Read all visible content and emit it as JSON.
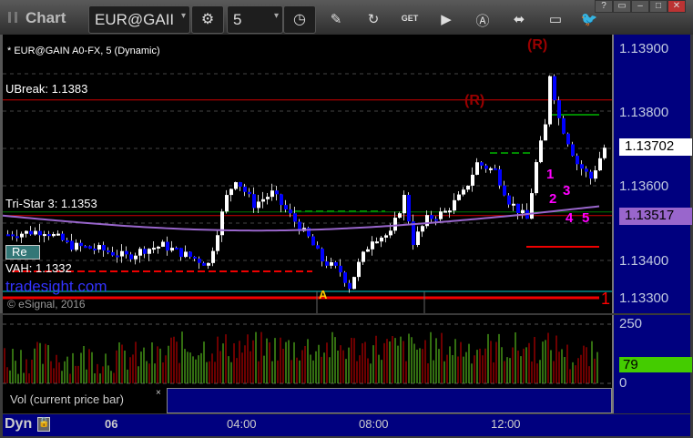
{
  "window": {
    "title": "Chart",
    "symbol": "EUR@GAII",
    "interval": "5"
  },
  "toolbar": {
    "icons": [
      "gear-icon",
      "clock-icon",
      "pencil-icon",
      "refresh-chart-icon",
      "get-icon",
      "play-icon",
      "a-icon",
      "link-icon",
      "comment-icon",
      "twitter-icon"
    ],
    "win": [
      "?",
      "▭",
      "–",
      "□",
      "✕"
    ]
  },
  "chart": {
    "heading": "* EUR@GAIN A0-FX, 5 (Dynamic)",
    "copyright": "© eSignal, 2016",
    "watermark": "tradesight.com",
    "ubreak": "UBreak: 1.1383",
    "tristar": "Tri-Star 3: 1.1353",
    "vah": "VAH: 1.1332",
    "r1": "(R)",
    "r2": "(R)",
    "a_marker": "A",
    "one_marker": "1",
    "magenta": [
      "1",
      "2",
      "3",
      "4",
      "5"
    ],
    "badge": "Re"
  },
  "chart_data": {
    "type": "candlestick",
    "y_ticks": [
      "1.13900",
      "1.13800",
      "1.13600",
      "1.13400",
      "1.13300"
    ],
    "ylim": [
      1.1328,
      1.1395
    ],
    "price_path": [
      [
        0,
        1.1347
      ],
      [
        8,
        1.1348
      ],
      [
        14,
        1.13439
      ],
      [
        20,
        1.1343
      ],
      [
        26,
        1.1341
      ],
      [
        30,
        1.1343
      ],
      [
        34,
        1.1344
      ],
      [
        40,
        1.1341
      ],
      [
        44,
        1.1339
      ],
      [
        48,
        1.1357
      ],
      [
        50,
        1.1362
      ],
      [
        54,
        1.1355
      ],
      [
        58,
        1.1358
      ],
      [
        62,
        1.1352
      ],
      [
        66,
        1.1346
      ],
      [
        69,
        1.134
      ],
      [
        73,
        1.1337
      ],
      [
        75,
        1.1333
      ],
      [
        77,
        1.1339
      ],
      [
        80,
        1.1346
      ],
      [
        84,
        1.1347
      ],
      [
        87,
        1.1357
      ],
      [
        89,
        1.1345
      ],
      [
        92,
        1.1351
      ],
      [
        96,
        1.1353
      ],
      [
        100,
        1.1358
      ],
      [
        103,
        1.1366
      ],
      [
        107,
        1.1364
      ],
      [
        110,
        1.1356
      ],
      [
        114,
        1.1351
      ],
      [
        116,
        1.1366
      ],
      [
        118,
        1.1376
      ],
      [
        119,
        1.139
      ],
      [
        121,
        1.1378
      ],
      [
        123,
        1.1372
      ],
      [
        125,
        1.1366
      ],
      [
        128,
        1.1362
      ],
      [
        131,
        1.13702
      ]
    ],
    "last_price": "1.13702",
    "ma_value": "1.13517",
    "colors": {
      "up": "#ffffff",
      "down": "#0000ff",
      "ma": "#9966cc"
    }
  },
  "volume": {
    "ticks": [
      "250",
      "0"
    ],
    "last": "79",
    "study": "Vol (current price bar)",
    "close": "×"
  },
  "time_axis": {
    "mode": "Dyn",
    "labels": [
      "06",
      "04:00",
      "08:00",
      "12:00"
    ]
  }
}
